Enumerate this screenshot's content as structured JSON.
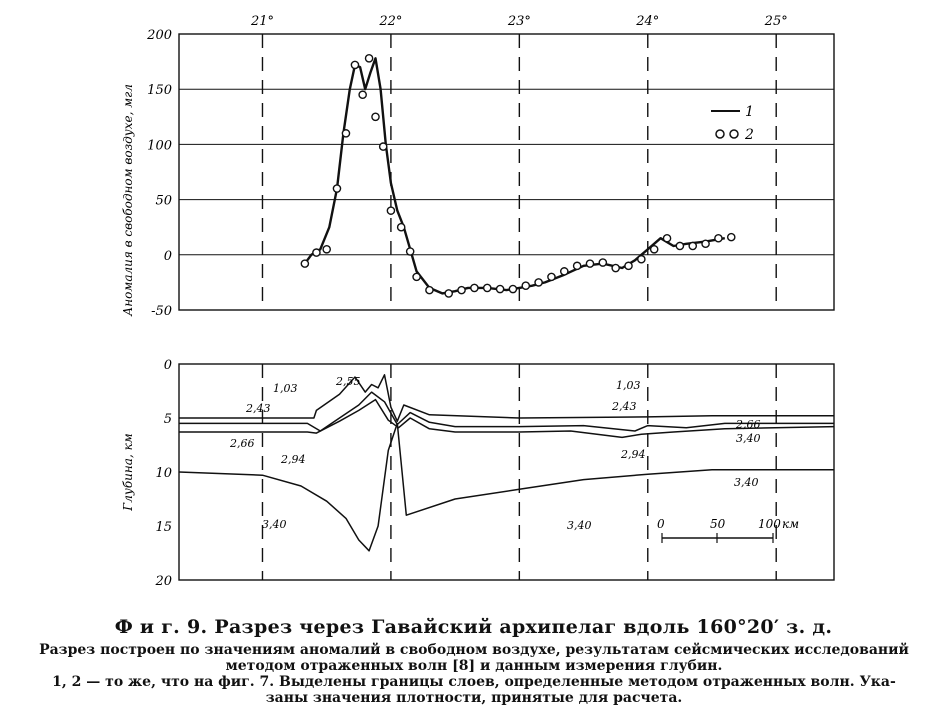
{
  "figure": {
    "title": "Ф и г. 9. Разрез через Гавайский архипелаг вдоль 160°20′ з. д.",
    "caption_line1": "Разрез построен по значениям аномалий в свободном воздухе, результатам сейсмических исследований",
    "caption_line2": "методом отраженных волн [8] и данным измерения глубин.",
    "caption_line3": "1, 2 — то же, что на фиг. 7. Выделены границы слоев, определенные методом отраженных волн. Ука-",
    "caption_line4": "заны значения плотности, принятые для расчета."
  },
  "chart_data": [
    {
      "type": "line",
      "panel": "gravity",
      "ylabel": "Аномалия в свободном воздухе, мгл",
      "ylim": [
        -50,
        200
      ],
      "y_ticks": [
        "200",
        "150",
        "100",
        "50",
        "0",
        "-50"
      ],
      "x_ticks": [
        "21°",
        "22°",
        "23°",
        "24°",
        "25°"
      ],
      "xlim": [
        20.35,
        25.45
      ],
      "legend": [
        {
          "key": "1",
          "style": "line"
        },
        {
          "key": "2",
          "style": "circles"
        }
      ],
      "series": [
        {
          "name": "1",
          "x": [
            21.33,
            21.38,
            21.45,
            21.52,
            21.58,
            21.63,
            21.68,
            21.72,
            21.76,
            21.8,
            21.84,
            21.88,
            21.92,
            21.96,
            22.0,
            22.05,
            22.1,
            22.15,
            22.2,
            22.3,
            22.4,
            22.5,
            22.6,
            22.75,
            22.9,
            23.0,
            23.1,
            23.2,
            23.35,
            23.5,
            23.65,
            23.8,
            23.9,
            24.0,
            24.1,
            24.2,
            24.3,
            24.45,
            24.6
          ],
          "y": [
            -8,
            0,
            5,
            25,
            60,
            110,
            150,
            172,
            170,
            150,
            165,
            178,
            150,
            100,
            65,
            40,
            25,
            5,
            -15,
            -30,
            -35,
            -33,
            -30,
            -30,
            -32,
            -30,
            -28,
            -25,
            -18,
            -10,
            -8,
            -12,
            -5,
            5,
            15,
            8,
            10,
            12,
            15
          ]
        },
        {
          "name": "2",
          "x": [
            21.33,
            21.42,
            21.5,
            21.58,
            21.65,
            21.72,
            21.78,
            21.83,
            21.88,
            21.94,
            22.0,
            22.08,
            22.15,
            22.2,
            22.3,
            22.45,
            22.55,
            22.65,
            22.75,
            22.85,
            22.95,
            23.05,
            23.15,
            23.25,
            23.35,
            23.45,
            23.55,
            23.65,
            23.75,
            23.85,
            23.95,
            24.05,
            24.15,
            24.25,
            24.35,
            24.45,
            24.55,
            24.65
          ],
          "y": [
            -8,
            2,
            5,
            60,
            110,
            172,
            145,
            178,
            125,
            98,
            40,
            25,
            3,
            -20,
            -32,
            -35,
            -32,
            -30,
            -30,
            -31,
            -31,
            -28,
            -25,
            -20,
            -15,
            -10,
            -8,
            -7,
            -12,
            -10,
            -4,
            5,
            15,
            8,
            8,
            10,
            15,
            16
          ]
        }
      ]
    },
    {
      "type": "line",
      "panel": "depth",
      "ylabel": "Глубина, км",
      "ylim": [
        0,
        20
      ],
      "y_ticks": [
        "0",
        "5",
        "10",
        "15",
        "20"
      ],
      "scale_bar": {
        "labels": [
          "0",
          "50",
          "100",
          "км"
        ]
      },
      "density_labels": [
        "1,03",
        "2,43",
        "2,66",
        "2,94",
        "3,40",
        "2,55",
        "1,03",
        "2,43",
        "2,66",
        "2,94",
        "3,40",
        "3,40",
        "3,40"
      ],
      "series": [
        {
          "name": "boundary-1",
          "x": [
            20.35,
            21.4,
            21.42,
            21.6,
            21.72,
            21.8,
            21.85,
            21.9,
            21.95,
            22.0,
            22.05,
            22.1,
            22.3,
            23.0,
            24.0,
            24.5,
            25.45
          ],
          "y": [
            5.0,
            5.0,
            4.3,
            2.8,
            1.2,
            2.6,
            1.9,
            2.2,
            1.0,
            4.0,
            5.3,
            3.8,
            4.7,
            5.0,
            4.9,
            4.8,
            4.8
          ]
        },
        {
          "name": "boundary-2",
          "x": [
            20.35,
            21.35,
            21.45,
            21.6,
            21.75,
            21.85,
            21.95,
            22.05,
            22.15,
            22.3,
            22.5,
            23.0,
            23.5,
            23.9,
            24.0,
            24.3,
            24.6,
            25.45
          ],
          "y": [
            5.5,
            5.5,
            6.2,
            5.0,
            3.8,
            2.6,
            3.5,
            5.6,
            4.5,
            5.4,
            5.8,
            5.8,
            5.7,
            6.2,
            5.7,
            5.9,
            5.5,
            5.5
          ]
        },
        {
          "name": "boundary-3",
          "x": [
            20.35,
            21.35,
            21.42,
            21.6,
            21.75,
            21.88,
            21.98,
            22.06,
            22.15,
            22.3,
            22.5,
            23.0,
            23.4,
            23.8,
            23.95,
            24.2,
            24.6,
            25.45
          ],
          "y": [
            6.3,
            6.3,
            6.4,
            5.3,
            4.3,
            3.3,
            5.2,
            5.9,
            5.0,
            6.0,
            6.3,
            6.3,
            6.2,
            6.8,
            6.5,
            6.3,
            6.0,
            5.8
          ]
        },
        {
          "name": "moho",
          "x": [
            20.35,
            21.0,
            21.3,
            21.5,
            21.65,
            21.75,
            21.83,
            21.9,
            21.98,
            22.05,
            22.12,
            22.5,
            23.0,
            23.5,
            24.0,
            24.5,
            25.45
          ],
          "y": [
            10.0,
            10.3,
            11.3,
            12.7,
            14.3,
            16.3,
            17.3,
            15.0,
            8.0,
            5.5,
            14.0,
            12.5,
            11.6,
            10.7,
            10.2,
            9.8,
            9.8
          ]
        }
      ]
    }
  ]
}
